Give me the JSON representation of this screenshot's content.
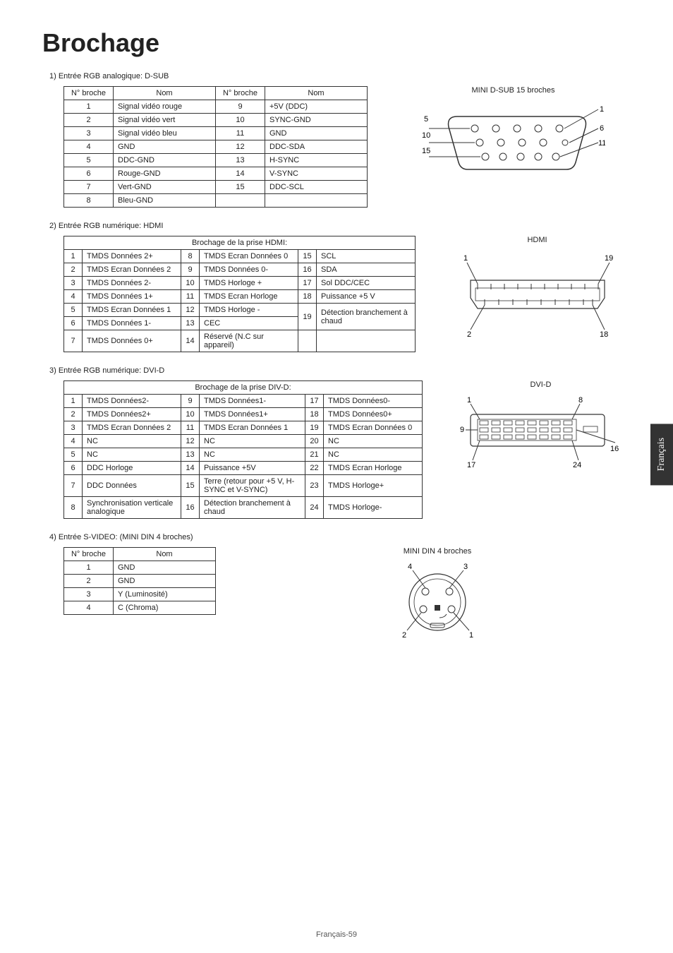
{
  "page": {
    "title": "Brochage",
    "footer": "Français-59",
    "sideTab": "Français"
  },
  "sections": {
    "dsub": {
      "header": "1)  Entrée RGB analogique: D-SUB",
      "col_pin": "N° broche",
      "col_name": "Nom",
      "rows": [
        [
          "1",
          "Signal vidéo rouge",
          "9",
          "+5V (DDC)"
        ],
        [
          "2",
          "Signal vidéo vert",
          "10",
          "SYNC-GND"
        ],
        [
          "3",
          "Signal vidéo bleu",
          "11",
          "GND"
        ],
        [
          "4",
          "GND",
          "12",
          "DDC-SDA"
        ],
        [
          "5",
          "DDC-GND",
          "13",
          "H-SYNC"
        ],
        [
          "6",
          "Rouge-GND",
          "14",
          "V-SYNC"
        ],
        [
          "7",
          "Vert-GND",
          "15",
          "DDC-SCL"
        ],
        [
          "8",
          "Bleu-GND",
          "",
          ""
        ]
      ],
      "diagram_label": "MINI D-SUB 15 broches",
      "pins": {
        "p1": "1",
        "p5": "5",
        "p6": "6",
        "p10": "10",
        "p11": "11",
        "p15": "15"
      }
    },
    "hdmi": {
      "header": "2)  Entrée RGB numérique: HDMI",
      "title": "Brochage de la prise HDMI:",
      "rows": [
        [
          "1",
          "TMDS Données 2+",
          "8",
          "TMDS Ecran Données 0",
          "15",
          "SCL"
        ],
        [
          "2",
          "TMDS Ecran Données 2",
          "9",
          "TMDS Données 0-",
          "16",
          "SDA"
        ],
        [
          "3",
          "TMDS Données 2-",
          "10",
          "TMDS Horloge +",
          "17",
          "Sol DDC/CEC"
        ],
        [
          "4",
          "TMDS Données 1+",
          "11",
          "TMDS Ecran Horloge",
          "18",
          "Puissance +5 V"
        ],
        [
          "5",
          "TMDS Ecran Données 1",
          "12",
          "TMDS Horloge -",
          "19",
          "Détection branchement à chaud"
        ],
        [
          "6",
          "TMDS Données 1-",
          "13",
          "CEC",
          "",
          ""
        ],
        [
          "7",
          "TMDS Données 0+",
          "14",
          "Réservé (N.C sur appareil)",
          "",
          ""
        ]
      ],
      "diagram_label": "HDMI",
      "pins": {
        "p1": "1",
        "p2": "2",
        "p18": "18",
        "p19": "19"
      }
    },
    "dvid": {
      "header": "3)  Entrée RGB numérique: DVI-D",
      "title": "Brochage de la prise DIV-D:",
      "rows": [
        [
          "1",
          "TMDS Données2-",
          "9",
          "TMDS Données1-",
          "17",
          "TMDS Données0-"
        ],
        [
          "2",
          "TMDS Données2+",
          "10",
          "TMDS Données1+",
          "18",
          "TMDS Données0+"
        ],
        [
          "3",
          "TMDS Ecran Données 2",
          "11",
          "TMDS Ecran Données 1",
          "19",
          "TMDS Ecran Données 0"
        ],
        [
          "4",
          "NC",
          "12",
          "NC",
          "20",
          "NC"
        ],
        [
          "5",
          "NC",
          "13",
          "NC",
          "21",
          "NC"
        ],
        [
          "6",
          "DDC Horloge",
          "14",
          "Puissance +5V",
          "22",
          "TMDS Ecran Horloge"
        ],
        [
          "7",
          "DDC Données",
          "15",
          "Terre (retour pour +5 V, H-SYNC et V-SYNC)",
          "23",
          "TMDS Horloge+"
        ],
        [
          "8",
          "Synchronisation verticale analogique",
          "16",
          "Détection branchement à chaud",
          "24",
          "TMDS Horloge-"
        ]
      ],
      "diagram_label": "DVI-D",
      "pins": {
        "p1": "1",
        "p8": "8",
        "p9": "9",
        "p16": "16",
        "p17": "17",
        "p24": "24"
      }
    },
    "svideo": {
      "header": "4)  Entrée S-VIDEO: (MINI DIN 4 broches)",
      "col_pin": "N° broche",
      "col_name": "Nom",
      "rows": [
        [
          "1",
          "GND"
        ],
        [
          "2",
          "GND"
        ],
        [
          "3",
          "Y (Luminosité)"
        ],
        [
          "4",
          "C (Chroma)"
        ]
      ],
      "diagram_label": "MINI DIN 4 broches",
      "pins": {
        "p1": "1",
        "p2": "2",
        "p3": "3",
        "p4": "4"
      }
    }
  }
}
